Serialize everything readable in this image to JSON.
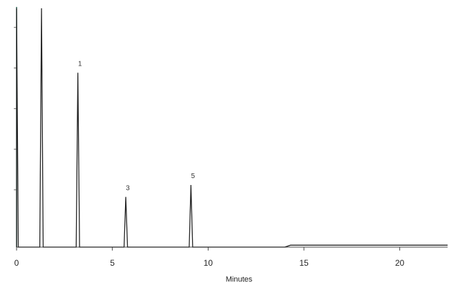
{
  "chart_data": {
    "type": "line",
    "title": "",
    "xlabel": "Minutes",
    "ylabel": "",
    "xlim": [
      0,
      22.5
    ],
    "ylim": [
      0,
      100
    ],
    "x_ticks": [
      0,
      5,
      10,
      15,
      20
    ],
    "x_tick_labels": [
      "0",
      "5",
      "10",
      "15",
      "20"
    ],
    "grid": false,
    "legend": "none",
    "line_color": "#222222",
    "series": [
      {
        "peaks": [
          {
            "time": 0.0,
            "height": 100,
            "label": ""
          },
          {
            "time": 1.3,
            "height": 100,
            "label": ""
          },
          {
            "time": 3.2,
            "height": 73,
            "label": "1"
          },
          {
            "time": 5.7,
            "height": 21,
            "label": "3"
          },
          {
            "time": 9.1,
            "height": 26,
            "label": "5"
          }
        ],
        "baseline_step": {
          "start": 14.0,
          "end": 22.5,
          "height": 0.8
        }
      }
    ]
  }
}
